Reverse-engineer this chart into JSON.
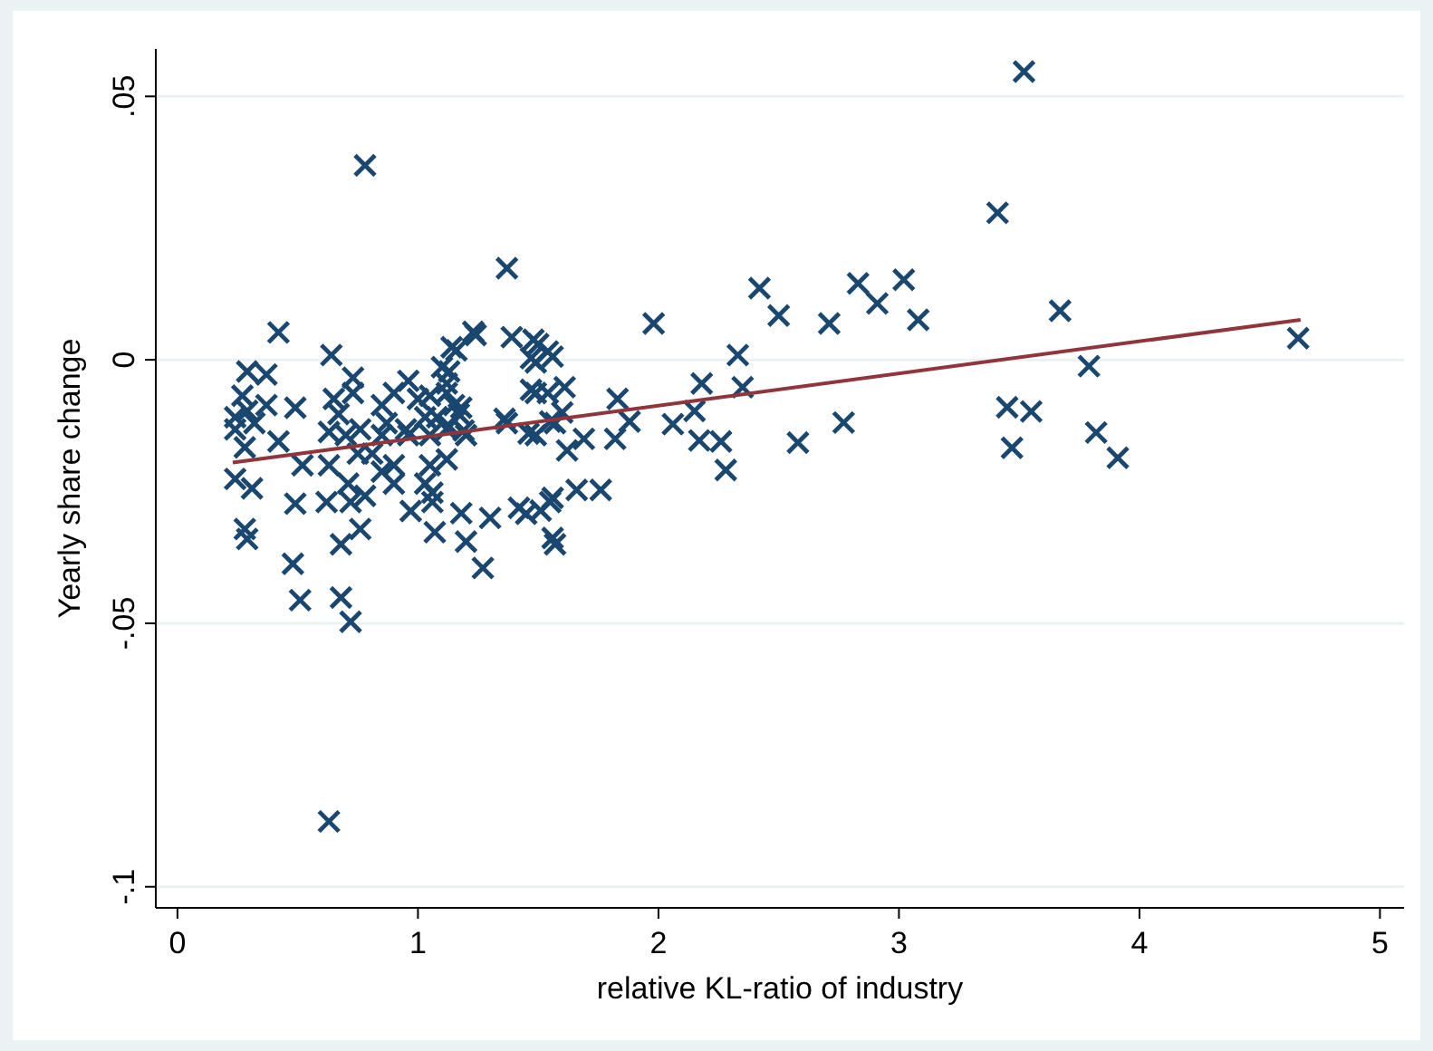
{
  "chart_data": {
    "type": "scatter",
    "xlabel": "relative KL-ratio of industry",
    "ylabel": "Yearly share change",
    "xlim": [
      -0.09,
      5.1
    ],
    "ylim": [
      -0.104,
      0.059
    ],
    "xticks": [
      0,
      1,
      2,
      3,
      4,
      5
    ],
    "yticks": [
      {
        "value": -0.1,
        "label": "-.1"
      },
      {
        "value": -0.05,
        "label": "-.05"
      },
      {
        "value": 0,
        "label": "0"
      },
      {
        "value": 0.05,
        "label": ".05"
      }
    ],
    "grid": "y",
    "marker": "cross",
    "series": [
      {
        "color": "#1a476f",
        "x": [
          3.52,
          0.78,
          3.41,
          1.37,
          2.42,
          2.83,
          3.02,
          2.91,
          2.5,
          3.08,
          2.71,
          1.98,
          3.67,
          4.66,
          3.79,
          3.45,
          3.55,
          3.47,
          3.82,
          3.91,
          2.77,
          2.58,
          2.33,
          2.35,
          2.18,
          2.15,
          2.06,
          2.17,
          2.26,
          2.28,
          1.83,
          1.88,
          1.82,
          1.76,
          1.66,
          1.69,
          1.62,
          1.6,
          1.61,
          1.54,
          1.48,
          1.47,
          1.39,
          1.23,
          1.14,
          1.1,
          1.47,
          1.36,
          1.46,
          1.55,
          1.42,
          1.51,
          1.56,
          1.56,
          1.3,
          1.18,
          1.2,
          1.27,
          1.18,
          1.19,
          1.13,
          1.12,
          0.42,
          0.64,
          0.29,
          0.37,
          0.73,
          0.96,
          1.13,
          1.16,
          1.24,
          1.5,
          1.56,
          1.49,
          0.27,
          0.29,
          0.24,
          0.24,
          0.32,
          0.37,
          0.28,
          0.49,
          0.42,
          0.52,
          0.24,
          0.31,
          0.49,
          0.28,
          0.29,
          0.48,
          0.51,
          0.68,
          0.72,
          0.68,
          0.76,
          0.62,
          0.65,
          0.67,
          0.73,
          0.76,
          0.7,
          0.63,
          0.75,
          0.63,
          0.71,
          0.78,
          0.72,
          0.85,
          0.9,
          0.95,
          0.87,
          1.0,
          1.05,
          1.03,
          1.08,
          1.05,
          1.12,
          1.12,
          1.15,
          1.17,
          1.2,
          1.12,
          1.05,
          1.03,
          1.06,
          1.06,
          1.07,
          0.97,
          0.9,
          0.9,
          0.85,
          0.81,
          0.85,
          0.96,
          1.45,
          1.55,
          1.57,
          1.37,
          1.49,
          1.54,
          1.49,
          1.57
        ],
        "values": [
          0.0547,
          0.0369,
          0.0279,
          0.0174,
          0.0136,
          0.0145,
          0.0152,
          0.0107,
          0.0084,
          0.0076,
          0.0069,
          0.0069,
          0.0093,
          0.0041,
          -0.0012,
          -0.009,
          -0.0098,
          -0.0167,
          -0.0138,
          -0.0186,
          -0.0119,
          -0.0157,
          0.0009,
          -0.0052,
          -0.0045,
          -0.0097,
          -0.0122,
          -0.0153,
          -0.0155,
          -0.0209,
          -0.0074,
          -0.0117,
          -0.015,
          -0.0247,
          -0.0247,
          -0.015,
          -0.0172,
          -0.01,
          -0.0052,
          0.0016,
          0.0038,
          0.0003,
          0.0043,
          0.0053,
          0.0024,
          -0.0014,
          -0.0057,
          -0.0112,
          -0.014,
          -0.0117,
          -0.0281,
          -0.0286,
          -0.0262,
          -0.0338,
          -0.03,
          -0.0291,
          -0.0345,
          -0.0395,
          -0.0091,
          -0.0134,
          -0.0126,
          -0.0045,
          0.0052,
          0.0009,
          -0.0022,
          -0.0028,
          -0.0034,
          -0.004,
          -0.0022,
          0.0018,
          0.0047,
          0.003,
          0.0006,
          -0.0005,
          -0.0068,
          -0.0097,
          -0.0109,
          -0.0132,
          -0.012,
          -0.0086,
          -0.0166,
          -0.0091,
          -0.0155,
          -0.02,
          -0.0226,
          -0.0244,
          -0.0273,
          -0.0321,
          -0.034,
          -0.0387,
          -0.0456,
          -0.0451,
          -0.0497,
          -0.035,
          -0.0321,
          -0.027,
          -0.0074,
          -0.0103,
          -0.0063,
          -0.0132,
          -0.0143,
          -0.0137,
          -0.0178,
          -0.02,
          -0.0235,
          -0.0258,
          -0.027,
          -0.0086,
          -0.0063,
          -0.0132,
          -0.012,
          -0.0074,
          -0.0068,
          -0.0109,
          -0.0109,
          -0.0143,
          -0.0132,
          -0.0063,
          -0.0086,
          -0.0103,
          -0.0143,
          -0.0189,
          -0.02,
          -0.0235,
          -0.0252,
          -0.027,
          -0.0327,
          -0.0287,
          -0.0235,
          -0.02,
          -0.0212,
          -0.0178,
          -0.0143,
          -0.0143,
          -0.0292,
          -0.027,
          -0.035,
          -0.012,
          -0.0063,
          -0.0063,
          -0.0143,
          -0.012
        ]
      },
      {
        "color": "#1a476f",
        "x": [
          0.63
        ],
        "values": [
          -0.0876
        ]
      },
      {
        "type": "line",
        "marker": "none",
        "color": "#90353b",
        "x": [
          0.23,
          4.67
        ],
        "values": [
          -0.0195,
          0.0076
        ]
      }
    ]
  }
}
